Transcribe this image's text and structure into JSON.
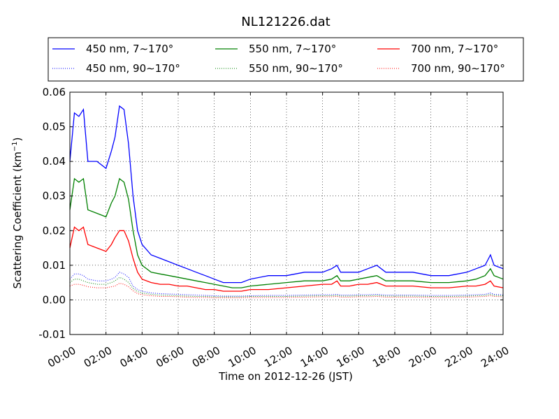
{
  "chart_data": {
    "type": "line",
    "title": "NL121226.dat",
    "xlabel": "Time on 2012-12-26 (JST)",
    "ylabel": "Scattering Coefficient (km",
    "ylabel_sup": "−1",
    "ylabel_close": ")",
    "xlim_hours": [
      0,
      24
    ],
    "ylim": [
      -0.01,
      0.06
    ],
    "grid": true,
    "legend_placement": "top",
    "x_ticks": [
      {
        "hour": 0,
        "label": "00:00"
      },
      {
        "hour": 2,
        "label": "02:00"
      },
      {
        "hour": 4,
        "label": "04:00"
      },
      {
        "hour": 6,
        "label": "06:00"
      },
      {
        "hour": 8,
        "label": "08:00"
      },
      {
        "hour": 10,
        "label": "10:00"
      },
      {
        "hour": 12,
        "label": "12:00"
      },
      {
        "hour": 14,
        "label": "14:00"
      },
      {
        "hour": 16,
        "label": "16:00"
      },
      {
        "hour": 18,
        "label": "18:00"
      },
      {
        "hour": 20,
        "label": "20:00"
      },
      {
        "hour": 22,
        "label": "22:00"
      },
      {
        "hour": 24,
        "label": "24:00"
      }
    ],
    "y_ticks": [
      {
        "value": -0.01,
        "label": "-0.01"
      },
      {
        "value": 0.0,
        "label": "0.00"
      },
      {
        "value": 0.01,
        "label": "0.01"
      },
      {
        "value": 0.02,
        "label": "0.02"
      },
      {
        "value": 0.03,
        "label": "0.03"
      },
      {
        "value": 0.04,
        "label": "0.04"
      },
      {
        "value": 0.05,
        "label": "0.05"
      },
      {
        "value": 0.06,
        "label": "0.06"
      }
    ],
    "x": [
      0.0,
      0.25,
      0.5,
      0.75,
      1.0,
      1.5,
      2.0,
      2.3,
      2.5,
      2.75,
      3.0,
      3.25,
      3.5,
      3.75,
      4.0,
      4.5,
      5.0,
      5.5,
      6.0,
      6.5,
      7.0,
      7.5,
      8.0,
      8.5,
      9.0,
      9.5,
      10.0,
      11.0,
      12.0,
      13.0,
      14.0,
      14.5,
      14.8,
      15.0,
      15.5,
      16.0,
      16.5,
      17.0,
      17.5,
      18.0,
      19.0,
      20.0,
      21.0,
      22.0,
      22.5,
      23.0,
      23.3,
      23.5,
      24.0
    ],
    "series": [
      {
        "name": "450 nm, 7∼170°",
        "color": "#0000ff",
        "style": "solid",
        "values": [
          0.04,
          0.054,
          0.053,
          0.055,
          0.04,
          0.04,
          0.038,
          0.043,
          0.047,
          0.056,
          0.055,
          0.045,
          0.03,
          0.02,
          0.016,
          0.013,
          0.012,
          0.011,
          0.01,
          0.009,
          0.008,
          0.007,
          0.006,
          0.005,
          0.005,
          0.005,
          0.006,
          0.007,
          0.007,
          0.008,
          0.008,
          0.009,
          0.01,
          0.008,
          0.008,
          0.008,
          0.009,
          0.01,
          0.008,
          0.008,
          0.008,
          0.007,
          0.007,
          0.008,
          0.009,
          0.01,
          0.013,
          0.01,
          0.009
        ]
      },
      {
        "name": "550 nm, 7∼170°",
        "color": "#008000",
        "style": "solid",
        "values": [
          0.026,
          0.035,
          0.034,
          0.035,
          0.026,
          0.025,
          0.024,
          0.028,
          0.03,
          0.035,
          0.034,
          0.029,
          0.02,
          0.013,
          0.01,
          0.008,
          0.0075,
          0.007,
          0.0065,
          0.006,
          0.0055,
          0.005,
          0.0045,
          0.004,
          0.0035,
          0.0035,
          0.004,
          0.0045,
          0.005,
          0.0055,
          0.0055,
          0.006,
          0.007,
          0.0055,
          0.0055,
          0.006,
          0.0065,
          0.007,
          0.0055,
          0.0055,
          0.0055,
          0.005,
          0.005,
          0.0055,
          0.006,
          0.007,
          0.009,
          0.007,
          0.006
        ]
      },
      {
        "name": "700 nm, 7∼170°",
        "color": "#ff0000",
        "style": "solid",
        "values": [
          0.015,
          0.021,
          0.02,
          0.021,
          0.016,
          0.015,
          0.014,
          0.016,
          0.018,
          0.02,
          0.02,
          0.017,
          0.012,
          0.008,
          0.006,
          0.005,
          0.0045,
          0.0045,
          0.004,
          0.004,
          0.0035,
          0.003,
          0.003,
          0.0025,
          0.0025,
          0.0025,
          0.003,
          0.003,
          0.0035,
          0.004,
          0.0045,
          0.0045,
          0.0055,
          0.004,
          0.004,
          0.0045,
          0.0045,
          0.005,
          0.004,
          0.004,
          0.004,
          0.0035,
          0.0035,
          0.004,
          0.004,
          0.0045,
          0.0055,
          0.004,
          0.0035
        ]
      },
      {
        "name": "450 nm, 90∼170°",
        "color": "#0000ff",
        "style": "dotted",
        "values": [
          0.006,
          0.0075,
          0.0075,
          0.007,
          0.006,
          0.0055,
          0.0055,
          0.006,
          0.0065,
          0.008,
          0.0075,
          0.0065,
          0.004,
          0.003,
          0.0025,
          0.002,
          0.0018,
          0.0017,
          0.0016,
          0.0015,
          0.0014,
          0.0013,
          0.0012,
          0.0011,
          0.0011,
          0.0011,
          0.0012,
          0.0013,
          0.0013,
          0.0014,
          0.0015,
          0.0015,
          0.0016,
          0.0014,
          0.0014,
          0.0015,
          0.0015,
          0.0016,
          0.0014,
          0.0014,
          0.0014,
          0.0013,
          0.0013,
          0.0014,
          0.0015,
          0.0016,
          0.002,
          0.0016,
          0.0015
        ]
      },
      {
        "name": "550 nm, 90∼170°",
        "color": "#008000",
        "style": "dotted",
        "values": [
          0.005,
          0.006,
          0.006,
          0.0055,
          0.005,
          0.0045,
          0.0045,
          0.005,
          0.0055,
          0.0065,
          0.006,
          0.005,
          0.0033,
          0.0024,
          0.002,
          0.0016,
          0.0014,
          0.0013,
          0.0012,
          0.0011,
          0.001,
          0.001,
          0.0009,
          0.0009,
          0.0009,
          0.0009,
          0.001,
          0.001,
          0.001,
          0.0011,
          0.0012,
          0.0012,
          0.0013,
          0.0011,
          0.0011,
          0.0012,
          0.0012,
          0.0013,
          0.0011,
          0.0011,
          0.0011,
          0.001,
          0.001,
          0.0011,
          0.0012,
          0.0013,
          0.0016,
          0.0013,
          0.0012
        ]
      },
      {
        "name": "700 nm, 90∼170°",
        "color": "#ff0000",
        "style": "dotted",
        "values": [
          0.004,
          0.0045,
          0.0045,
          0.0042,
          0.0038,
          0.0035,
          0.0035,
          0.0038,
          0.004,
          0.0048,
          0.0045,
          0.0038,
          0.0026,
          0.0018,
          0.0015,
          0.0012,
          0.001,
          0.001,
          0.0009,
          0.0008,
          0.0007,
          0.0007,
          0.0006,
          0.0006,
          0.0006,
          0.0006,
          0.0007,
          0.0007,
          0.0007,
          0.0008,
          0.0009,
          0.0009,
          0.001,
          0.0008,
          0.0008,
          0.0009,
          0.0009,
          0.001,
          0.0008,
          0.0008,
          0.0008,
          0.0007,
          0.0007,
          0.0008,
          0.0009,
          0.001,
          0.0012,
          0.001,
          0.0009
        ]
      }
    ],
    "legend_order": [
      0,
      1,
      2,
      3,
      4,
      5
    ]
  }
}
